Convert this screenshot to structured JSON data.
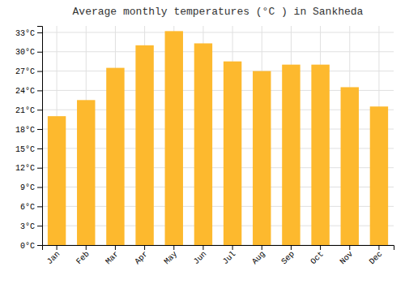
{
  "chart_data": {
    "type": "bar",
    "title": "Average monthly temperatures (°C ) in Sankheda",
    "categories": [
      "Jan",
      "Feb",
      "Mar",
      "Apr",
      "May",
      "Jun",
      "Jul",
      "Aug",
      "Sep",
      "Oct",
      "Nov",
      "Dec"
    ],
    "values": [
      20.0,
      22.5,
      27.5,
      31.0,
      33.2,
      31.3,
      28.5,
      27.0,
      28.0,
      28.0,
      24.5,
      21.5
    ],
    "color": "#FDB92E",
    "ylim": [
      0,
      34
    ],
    "yticks": [
      {
        "value": 0,
        "label": "0°C"
      },
      {
        "value": 3,
        "label": "3°C"
      },
      {
        "value": 6,
        "label": "6°C"
      },
      {
        "value": 9,
        "label": "9°C"
      },
      {
        "value": 12,
        "label": "12°C"
      },
      {
        "value": 15,
        "label": "15°C"
      },
      {
        "value": 18,
        "label": "18°C"
      },
      {
        "value": 21,
        "label": "21°C"
      },
      {
        "value": 24,
        "label": "24°C"
      },
      {
        "value": 27,
        "label": "27°C"
      },
      {
        "value": 30,
        "label": "30°C"
      },
      {
        "value": 33,
        "label": "33°C"
      }
    ],
    "grid": true
  }
}
